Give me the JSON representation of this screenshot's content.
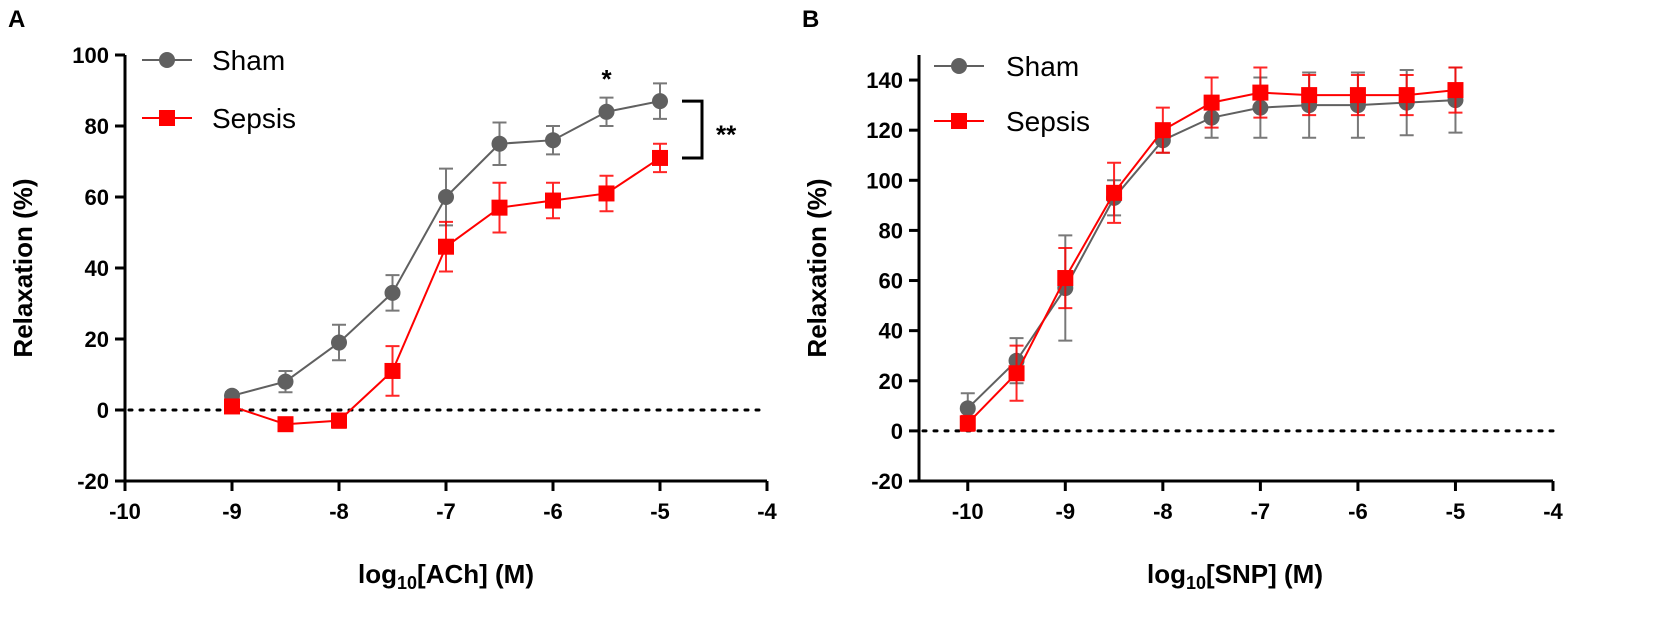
{
  "chart_data": [
    {
      "panel": "A",
      "type": "line",
      "xlabel_prefix": "log",
      "xlabel_sub": "10",
      "xlabel_suffix": "[ACh] (M)",
      "ylabel": "Relaxation (%)",
      "xlim": [
        -10,
        -4
      ],
      "ylim": [
        -20,
        100
      ],
      "xticks": [
        -10,
        -9,
        -8,
        -7,
        -6,
        -5,
        -4
      ],
      "yticks": [
        -20,
        0,
        20,
        40,
        60,
        80,
        100
      ],
      "reference_line_y": 0,
      "series": [
        {
          "name": "Sham",
          "color": "#606060",
          "marker": "circle",
          "x": [
            -9,
            -8.5,
            -8,
            -7.5,
            -7,
            -6.5,
            -6,
            -5.5,
            -5
          ],
          "y": [
            4,
            8,
            19,
            33,
            60,
            75,
            76,
            84,
            87
          ],
          "err": [
            1,
            3,
            5,
            5,
            8,
            6,
            4,
            4,
            5
          ]
        },
        {
          "name": "Sepsis",
          "color": "#ff0000",
          "marker": "square",
          "x": [
            -9,
            -8.5,
            -8,
            -7.5,
            -7,
            -6.5,
            -6,
            -5.5,
            -5
          ],
          "y": [
            1,
            -4,
            -3,
            11,
            46,
            57,
            59,
            61,
            71
          ],
          "err": [
            1,
            1,
            2,
            7,
            7,
            7,
            5,
            5,
            4
          ]
        }
      ],
      "annotations": [
        {
          "text": "*",
          "x": -5.5,
          "y": 93
        },
        {
          "text": "**",
          "bracket_y": [
            87,
            71
          ]
        }
      ]
    },
    {
      "panel": "B",
      "type": "line",
      "xlabel_prefix": "log",
      "xlabel_sub": "10",
      "xlabel_suffix": "[SNP] (M)",
      "ylabel": "Relaxation (%)",
      "xlim": [
        -10.5,
        -4
      ],
      "ylim": [
        -20,
        150
      ],
      "xticks": [
        -10,
        -9,
        -8,
        -7,
        -6,
        -5,
        -4
      ],
      "yticks": [
        -20,
        0,
        20,
        40,
        60,
        80,
        100,
        120,
        140
      ],
      "reference_line_y": 0,
      "series": [
        {
          "name": "Sham",
          "color": "#606060",
          "marker": "circle",
          "x": [
            -10,
            -9.5,
            -9,
            -8.5,
            -8,
            -7.5,
            -7,
            -6.5,
            -6,
            -5.5,
            -5
          ],
          "y": [
            9,
            28,
            57,
            93,
            116,
            125,
            129,
            130,
            130,
            131,
            132
          ],
          "err": [
            6,
            9,
            21,
            7,
            5,
            8,
            12,
            13,
            13,
            13,
            13
          ]
        },
        {
          "name": "Sepsis",
          "color": "#ff0000",
          "marker": "square",
          "x": [
            -10,
            -9.5,
            -9,
            -8.5,
            -8,
            -7.5,
            -7,
            -6.5,
            -6,
            -5.5,
            -5
          ],
          "y": [
            3,
            23,
            61,
            95,
            120,
            131,
            135,
            134,
            134,
            134,
            136
          ],
          "err": [
            3,
            11,
            12,
            12,
            9,
            10,
            10,
            8,
            8,
            8,
            9
          ]
        }
      ]
    }
  ]
}
